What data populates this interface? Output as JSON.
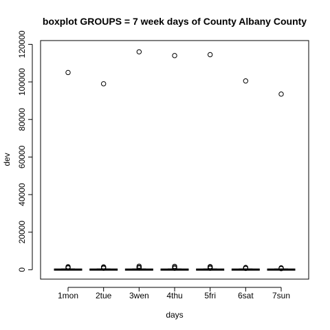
{
  "chart_data": {
    "type": "boxplot",
    "title": "boxplot GROUPS = 7 week days of County Albany County",
    "xlabel": "days",
    "ylabel": "dev",
    "ylim": [
      -5000,
      122000
    ],
    "yticks": [
      0,
      20000,
      40000,
      60000,
      80000,
      100000,
      120000
    ],
    "ytick_labels": [
      "0",
      "20000",
      "40000",
      "60000",
      "80000",
      "100000",
      "120000"
    ],
    "categories": [
      "1mon",
      "2tue",
      "3wen",
      "4thu",
      "5fri",
      "6sat",
      "7sun"
    ],
    "boxes": [
      {
        "q1": 0,
        "median": 100,
        "q3": 250,
        "whisker_low": 0,
        "whisker_high": 500,
        "outliers": [
          105000,
          1600,
          1200,
          900
        ]
      },
      {
        "q1": 0,
        "median": 100,
        "q3": 250,
        "whisker_low": 0,
        "whisker_high": 500,
        "outliers": [
          99000,
          1500,
          1100,
          800
        ]
      },
      {
        "q1": 0,
        "median": 100,
        "q3": 250,
        "whisker_low": 0,
        "whisker_high": 500,
        "outliers": [
          116000,
          1900,
          1300,
          900
        ]
      },
      {
        "q1": 0,
        "median": 100,
        "q3": 250,
        "whisker_low": 0,
        "whisker_high": 500,
        "outliers": [
          114000,
          1800,
          1200,
          800
        ]
      },
      {
        "q1": 0,
        "median": 100,
        "q3": 250,
        "whisker_low": 0,
        "whisker_high": 500,
        "outliers": [
          114500,
          1700,
          1200,
          800
        ]
      },
      {
        "q1": 0,
        "median": 100,
        "q3": 250,
        "whisker_low": 0,
        "whisker_high": 500,
        "outliers": [
          100500,
          1200,
          900,
          700
        ]
      },
      {
        "q1": 0,
        "median": 100,
        "q3": 250,
        "whisker_low": 0,
        "whisker_high": 500,
        "outliers": [
          93500,
          1000,
          800,
          600
        ]
      }
    ],
    "grid": false,
    "legend": "none"
  }
}
